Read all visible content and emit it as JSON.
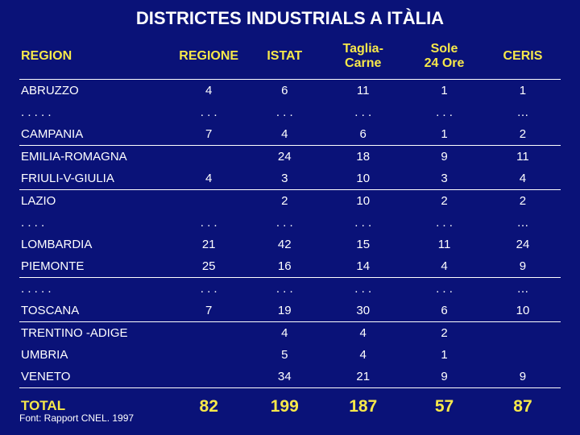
{
  "title": "DISTRICTES INDUSTRIALS A ITÀLIA",
  "columns": [
    "REGION",
    "REGIONE",
    "ISTAT",
    "Taglia-\nCarne",
    "Sole\n24 Ore",
    "CERIS"
  ],
  "rows": [
    {
      "cells": [
        "ABRUZZO",
        "4",
        "6",
        "11",
        "1",
        "1"
      ],
      "gap": false
    },
    {
      "cells": [
        ". . . . .",
        ". . .",
        ". . .",
        ". . .",
        ". . .",
        "…"
      ],
      "gap": false
    },
    {
      "cells": [
        "CAMPANIA",
        "7",
        "4",
        "6",
        "1",
        "2"
      ],
      "gap": false
    },
    {
      "cells": [
        "EMILIA-ROMAGNA",
        "",
        "24",
        "18",
        "9",
        "11"
      ],
      "gap": true
    },
    {
      "cells": [
        "FRIULI-V-GIULIA",
        "4",
        "3",
        "10",
        "3",
        "4"
      ],
      "gap": false
    },
    {
      "cells": [
        "LAZIO",
        "",
        "2",
        "10",
        "2",
        "2"
      ],
      "gap": true
    },
    {
      "cells": [
        ". . . . ",
        ". . .",
        ". . .",
        ". . .",
        ". . .",
        "…"
      ],
      "gap": false
    },
    {
      "cells": [
        "LOMBARDIA",
        "21",
        "42",
        "15",
        "11",
        "24"
      ],
      "gap": false
    },
    {
      "cells": [
        "PIEMONTE",
        "25",
        "16",
        "14",
        "4",
        "9"
      ],
      "gap": false
    },
    {
      "cells": [
        ". . . . .",
        ". . .",
        ". . .",
        ". . .",
        ". . .",
        "…"
      ],
      "gap": true
    },
    {
      "cells": [
        "TOSCANA",
        "7",
        "19",
        "30",
        "6",
        "10"
      ],
      "gap": false
    },
    {
      "cells": [
        "TRENTINO -ADIGE",
        "",
        "4",
        "4",
        "2",
        ""
      ],
      "gap": true
    },
    {
      "cells": [
        "UMBRIA",
        "",
        "5",
        "4",
        "1",
        ""
      ],
      "gap": false
    },
    {
      "cells": [
        "VENETO",
        "",
        "34",
        "21",
        "9",
        "9"
      ],
      "gap": false
    }
  ],
  "total": [
    "TOTAL",
    "82",
    "199",
    "187",
    "57",
    "87"
  ],
  "source": "Font: Rapport CNEL. 1997",
  "colors": {
    "background": "#0a1278",
    "text": "#ffffff",
    "accent": "#f7e84a",
    "rule": "#ffffff"
  },
  "layout": {
    "col_widths_pct": [
      28,
      14,
      14,
      15,
      15,
      14
    ],
    "title_fontsize": 22,
    "header_fontsize": 16,
    "cell_fontsize": 15,
    "total_fontsize": 21,
    "source_fontsize": 12
  }
}
